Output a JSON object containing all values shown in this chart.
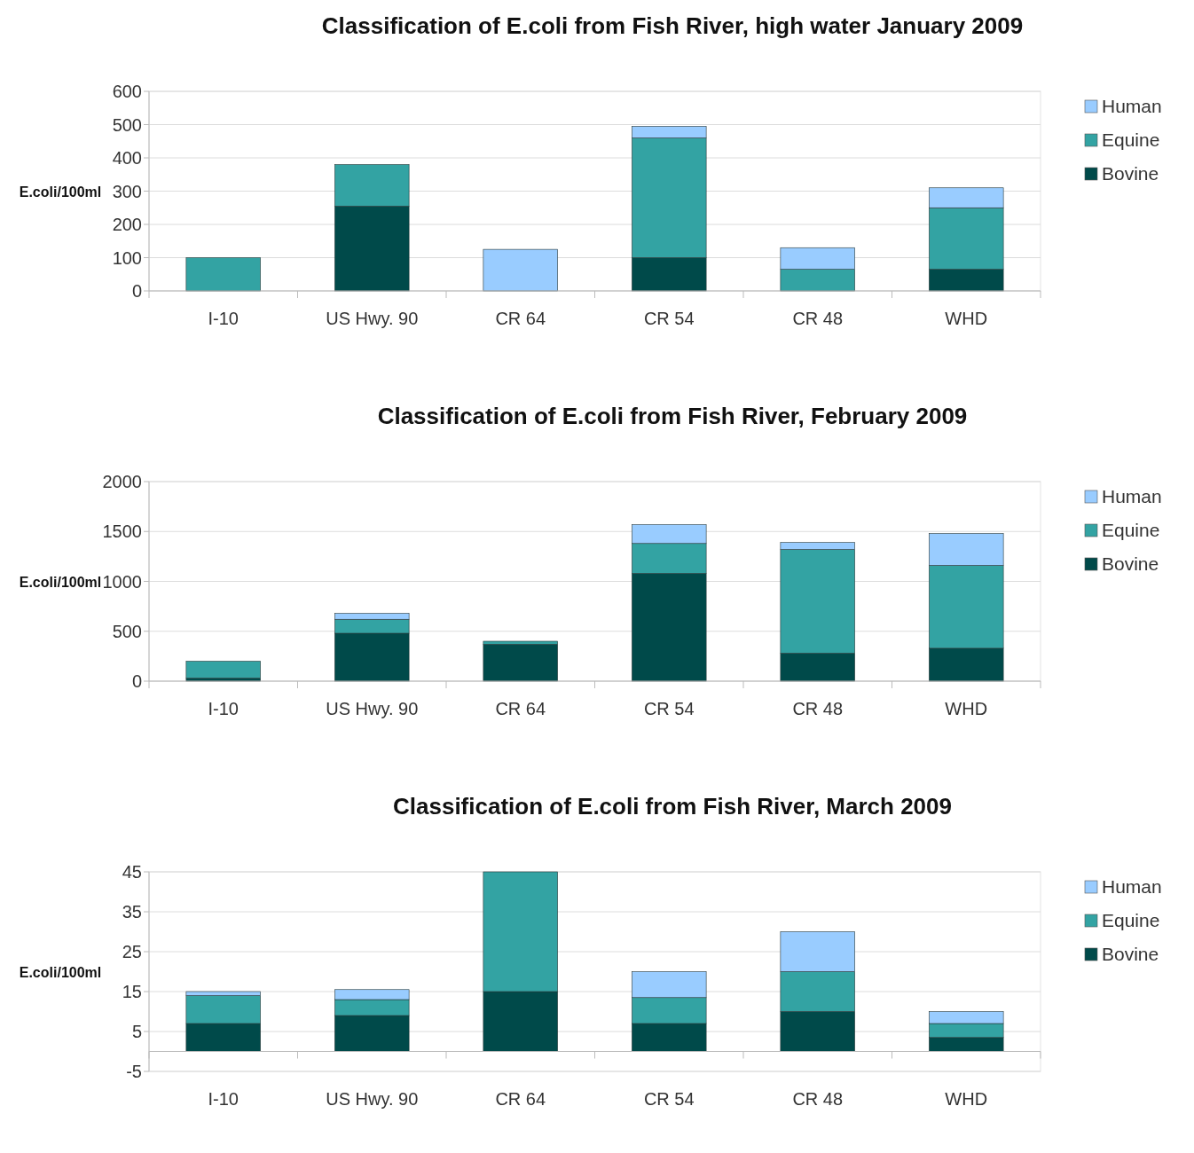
{
  "chart_data": [
    {
      "type": "bar",
      "title": "Classification of E.coli from Fish River, high water January 2009",
      "ylabel": "E.coli/100ml",
      "categories": [
        "I-10",
        "US Hwy. 90",
        "CR 64",
        "CR 54",
        "CR 48",
        "WHD"
      ],
      "stacked": true,
      "ylim": [
        0,
        600
      ],
      "yticks": [
        0,
        100,
        200,
        300,
        400,
        500,
        600
      ],
      "grid": "y",
      "legend": "right",
      "series": [
        {
          "name": "Bovine",
          "color": "#004a4a",
          "values": [
            0,
            255,
            0,
            100,
            0,
            65
          ]
        },
        {
          "name": "Equine",
          "color": "#33a3a3",
          "values": [
            100,
            125,
            0,
            360,
            65,
            185
          ]
        },
        {
          "name": "Human",
          "color": "#99ccff",
          "values": [
            0,
            0,
            125,
            35,
            65,
            60
          ]
        }
      ]
    },
    {
      "type": "bar",
      "title": "Classification of E.coli from Fish River, February 2009",
      "ylabel": "E.coli/100ml",
      "categories": [
        "I-10",
        "US Hwy. 90",
        "CR 64",
        "CR 54",
        "CR 48",
        "WHD"
      ],
      "stacked": true,
      "ylim": [
        0,
        2000
      ],
      "yticks": [
        0,
        500,
        1000,
        1500,
        2000
      ],
      "grid": "y",
      "legend": "right",
      "series": [
        {
          "name": "Bovine",
          "color": "#004a4a",
          "values": [
            30,
            480,
            370,
            1080,
            280,
            330
          ]
        },
        {
          "name": "Equine",
          "color": "#33a3a3",
          "values": [
            170,
            140,
            30,
            300,
            1040,
            830
          ]
        },
        {
          "name": "Human",
          "color": "#99ccff",
          "values": [
            0,
            60,
            0,
            190,
            70,
            320
          ]
        }
      ]
    },
    {
      "type": "bar",
      "title": "Classification of E.coli from Fish River, March 2009",
      "ylabel": "E.coli/100ml",
      "categories": [
        "I-10",
        "US Hwy. 90",
        "CR 64",
        "CR 54",
        "CR 48",
        "WHD"
      ],
      "stacked": true,
      "ylim": [
        -5,
        45
      ],
      "yticks": [
        -5,
        5,
        15,
        25,
        35,
        45
      ],
      "grid": "y",
      "legend": "right",
      "series": [
        {
          "name": "Bovine",
          "color": "#004a4a",
          "values": [
            7,
            9,
            15,
            7,
            10,
            3.5
          ]
        },
        {
          "name": "Equine",
          "color": "#33a3a3",
          "values": [
            7,
            4,
            30,
            6.5,
            10,
            3.5
          ]
        },
        {
          "name": "Human",
          "color": "#99ccff",
          "values": [
            1,
            2.5,
            0,
            6.5,
            10,
            3
          ]
        }
      ]
    }
  ]
}
